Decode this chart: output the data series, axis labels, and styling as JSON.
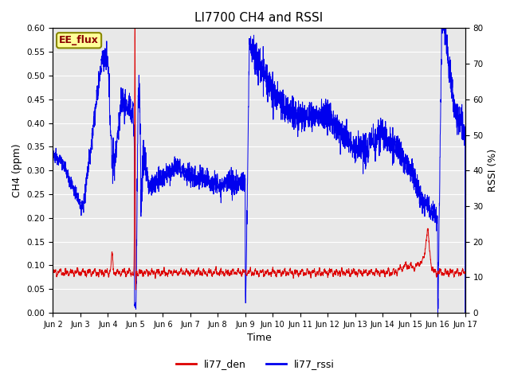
{
  "title": "LI7700 CH4 and RSSI",
  "xlabel": "Time",
  "ylabel_left": "CH4 (ppm)",
  "ylabel_right": "RSSI (%)",
  "annotation": "EE_flux",
  "ylim_left": [
    0.0,
    0.6
  ],
  "ylim_right": [
    0,
    80
  ],
  "yticks_left": [
    0.0,
    0.05,
    0.1,
    0.15,
    0.2,
    0.25,
    0.3,
    0.35,
    0.4,
    0.45,
    0.5,
    0.55,
    0.6
  ],
  "yticks_right": [
    0,
    10,
    20,
    30,
    40,
    50,
    60,
    70,
    80
  ],
  "xtick_labels": [
    "Jun 2",
    "Jun 3",
    "Jun 4",
    "Jun 5",
    "Jun 6",
    "Jun 7",
    "Jun 8",
    "Jun 9",
    "Jun 10",
    "Jun 11",
    "Jun 12",
    "Jun 13",
    "Jun 14",
    "Jun 15",
    "Jun 16",
    "Jun 17"
  ],
  "background_color": "#e8e8e8",
  "line_color_red": "#dd0000",
  "line_color_blue": "#0000ee",
  "legend_red": "li77_den",
  "legend_blue": "li77_rssi"
}
